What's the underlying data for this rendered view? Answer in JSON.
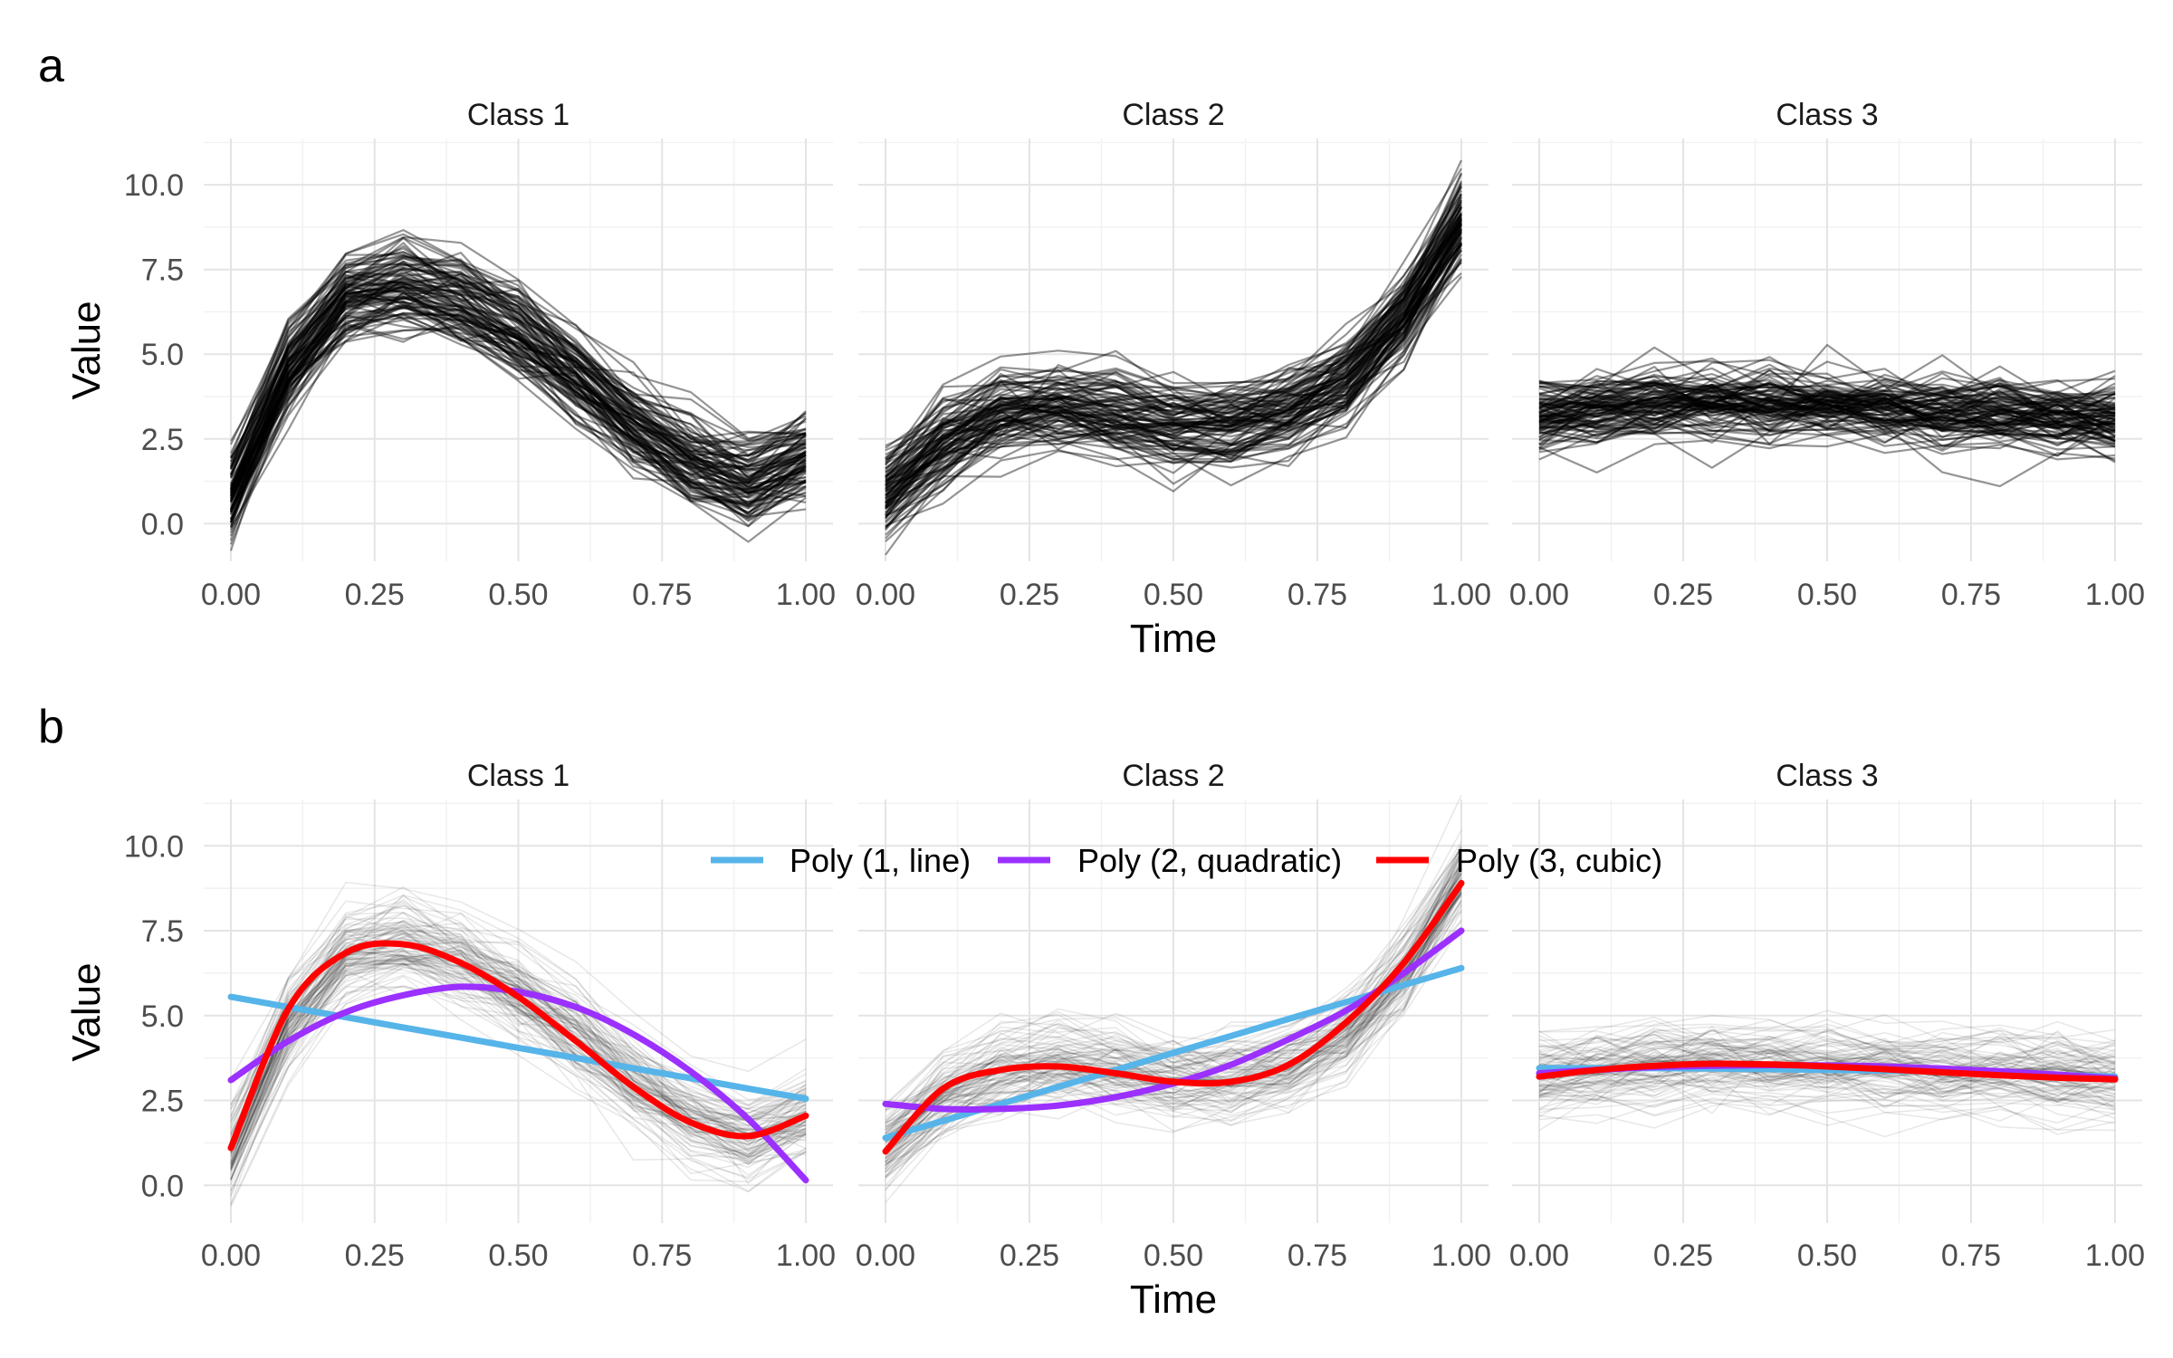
{
  "figure": {
    "panel_labels": [
      "a",
      "b"
    ]
  },
  "chart_data": [
    {
      "type": "line",
      "panel": "a",
      "facets": [
        "Class 1",
        "Class 2",
        "Class 3"
      ],
      "xlabel": "Time",
      "ylabel": "Value",
      "xlim": [
        0,
        1
      ],
      "ylim": [
        -0.9,
        11.1
      ],
      "x_ticks": [
        "0.00",
        "0.25",
        "0.50",
        "0.75",
        "1.00"
      ],
      "y_ticks": [
        "0.0",
        "2.5",
        "5.0",
        "7.5",
        "10.0"
      ],
      "grid": true,
      "line_color": "#000000",
      "x": [
        0,
        0.1,
        0.2,
        0.3,
        0.4,
        0.5,
        0.6,
        0.7,
        0.8,
        0.9,
        1.0
      ],
      "class_mean_curves": {
        "Class 1": [
          0.9,
          4.6,
          6.7,
          7.1,
          6.6,
          5.6,
          4.4,
          3.0,
          1.9,
          1.3,
          2.0
        ],
        "Class 2": [
          1.0,
          2.5,
          3.3,
          3.5,
          3.3,
          3.0,
          3.0,
          3.4,
          4.3,
          6.2,
          9.0
        ],
        "Class 3": [
          3.2,
          3.4,
          3.5,
          3.6,
          3.5,
          3.5,
          3.4,
          3.3,
          3.3,
          3.2,
          3.1
        ]
      },
      "series_per_class": 100
    },
    {
      "type": "line",
      "panel": "b",
      "facets": [
        "Class 1",
        "Class 2",
        "Class 3"
      ],
      "xlabel": "Time",
      "ylabel": "Value",
      "xlim": [
        0,
        1
      ],
      "ylim": [
        -0.9,
        11.1
      ],
      "x_ticks": [
        "0.00",
        "0.25",
        "0.50",
        "0.75",
        "1.00"
      ],
      "y_ticks": [
        "0.0",
        "2.5",
        "5.0",
        "7.5",
        "10.0"
      ],
      "grid": true,
      "legend_position": "top",
      "x": [
        0,
        0.1,
        0.2,
        0.3,
        0.4,
        0.5,
        0.6,
        0.7,
        0.8,
        0.9,
        1.0
      ],
      "fits": [
        {
          "name": "Poly (1, line)",
          "color": "#56B4E9",
          "values": {
            "Class 1": [
              5.55,
              5.25,
              4.95,
              4.65,
              4.35,
              4.05,
              3.75,
              3.45,
              3.15,
              2.85,
              2.55
            ],
            "Class 2": [
              1.4,
              1.9,
              2.4,
              2.9,
              3.4,
              3.9,
              4.4,
              4.9,
              5.4,
              5.9,
              6.4
            ],
            "Class 3": [
              3.45,
              3.45,
              3.45,
              3.44,
              3.42,
              3.4,
              3.38,
              3.35,
              3.3,
              3.25,
              3.2
            ]
          }
        },
        {
          "name": "Poly (2, quadratic)",
          "color": "#9B30FF",
          "values": {
            "Class 1": [
              3.1,
              4.25,
              5.1,
              5.6,
              5.85,
              5.7,
              5.25,
              4.45,
              3.35,
              1.95,
              0.15
            ],
            "Class 2": [
              2.4,
              2.25,
              2.25,
              2.35,
              2.6,
              3.0,
              3.55,
              4.3,
              5.15,
              6.25,
              7.5
            ],
            "Class 3": [
              3.3,
              3.4,
              3.48,
              3.52,
              3.54,
              3.53,
              3.5,
              3.44,
              3.36,
              3.26,
              3.15
            ]
          }
        },
        {
          "name": "Poly (3, cubic)",
          "color": "#FF0000",
          "values": {
            "Class 1": [
              1.1,
              5.2,
              6.85,
              7.1,
              6.55,
              5.55,
              4.25,
              2.9,
              1.85,
              1.45,
              2.05
            ],
            "Class 2": [
              1.0,
              2.85,
              3.4,
              3.5,
              3.3,
              3.05,
              3.05,
              3.55,
              4.8,
              6.55,
              8.9
            ],
            "Class 3": [
              3.2,
              3.4,
              3.52,
              3.58,
              3.56,
              3.5,
              3.42,
              3.33,
              3.24,
              3.17,
              3.12
            ]
          }
        }
      ]
    }
  ]
}
